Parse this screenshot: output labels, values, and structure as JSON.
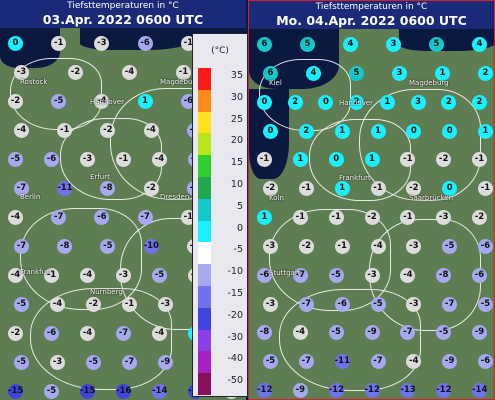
{
  "legend": {
    "unit": "(°C)",
    "ticks": [
      "35",
      "30",
      "25",
      "20",
      "15",
      "10",
      "5",
      "0",
      "-5",
      "-10",
      "-15",
      "-20",
      "-30",
      "-40",
      "-50"
    ],
    "colors": [
      "#ff1a1a",
      "#ff8c1a",
      "#ffe21a",
      "#b7e61a",
      "#2fd12f",
      "#1fa84f",
      "#12c8c8",
      "#19f0ff",
      "#ffffff",
      "#a6a9f0",
      "#6f72ea",
      "#3f44e0",
      "#8a3fe8",
      "#a81fc4",
      "#8a0f5a"
    ]
  },
  "panels": [
    {
      "title": "Tiefsttemperaturen in °C",
      "date": "03.Apr. 2022 0600 UTC",
      "cities": [
        "Rostock",
        "Hannover",
        "Magdeburg",
        "Berlin",
        "Erfurt",
        "Dresden",
        "Frankfurt",
        "Nürnberg"
      ],
      "values": [
        [
          [
            0,
            -1,
            -3,
            -6,
            -1,
            -4
          ],
          [
            -3,
            -2,
            -4,
            -1,
            -5
          ],
          [
            -2,
            -5,
            -4,
            1,
            -6,
            -5
          ],
          [
            -4,
            -1,
            -2,
            -4,
            -8,
            -9
          ],
          [
            -5,
            -6,
            -3,
            -1,
            -4,
            -7,
            -6
          ],
          [
            -7,
            -11,
            -8,
            -2,
            -5,
            -3
          ],
          [
            -4,
            -7,
            -6,
            -7,
            -1,
            -2
          ],
          [
            -7,
            -8,
            -5,
            -10,
            -2,
            -3
          ],
          [
            -4,
            -1,
            -4,
            -3,
            -5,
            -2,
            -8
          ],
          [
            -5,
            -4,
            -2,
            -1,
            -3,
            -2,
            -5
          ],
          [
            -2,
            -6,
            -4,
            -7,
            -4,
            1,
            -6
          ],
          [
            -5,
            -3,
            -5,
            -7,
            -9,
            -3,
            -4
          ],
          [
            -15,
            -5,
            -15,
            -16,
            -14,
            -19,
            -4
          ]
        ]
      ]
    },
    {
      "title": "Tiefsttemperaturen in °C",
      "date": "Mo. 04.Apr. 2022 0600 UTC",
      "cities": [
        "Kiel",
        "Hannover",
        "Magdeburg",
        "Köln",
        "Frankfurt",
        "Saarbrücken",
        "Stuttgart"
      ],
      "values": [
        [
          [
            6,
            5,
            4,
            3,
            5,
            4
          ],
          [
            6,
            4,
            5,
            3,
            1,
            2
          ],
          [
            0,
            2,
            0,
            2,
            1,
            3,
            2,
            2
          ],
          [
            0,
            2,
            1,
            1,
            0,
            0,
            1
          ],
          [
            -1,
            1,
            0,
            1,
            -1,
            -2,
            -1
          ],
          [
            -2,
            -1,
            1,
            -1,
            -2,
            0,
            -1
          ],
          [
            1,
            -1,
            -1,
            -2,
            -1,
            -3,
            -2
          ],
          [
            -3,
            -2,
            -1,
            -4,
            -3,
            -5,
            -6
          ],
          [
            -6,
            -7,
            -5,
            -3,
            -4,
            -8,
            -6
          ],
          [
            -3,
            -7,
            -6,
            -5,
            -3,
            -7,
            -5
          ],
          [
            -8,
            -4,
            -5,
            -9,
            -7,
            -5,
            -9
          ],
          [
            -5,
            -7,
            -11,
            -7,
            -4,
            -9,
            -6
          ],
          [
            -12,
            -9,
            -12,
            -12,
            -13,
            -12,
            -14
          ]
        ]
      ]
    }
  ]
}
